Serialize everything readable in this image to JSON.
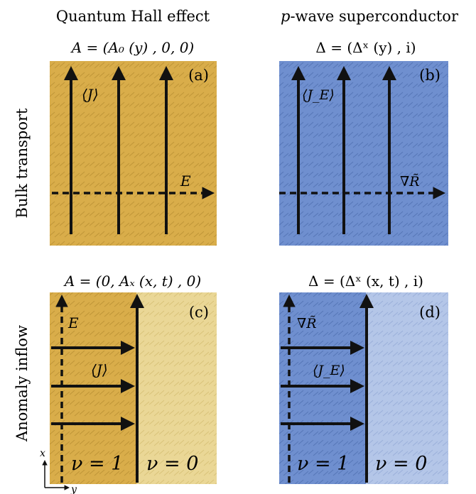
{
  "headers": {
    "left": "Quantum Hall effect",
    "right_italic": "p",
    "right_rest": "-wave superconductor"
  },
  "row_labels": {
    "top": "Bulk transport",
    "bottom": "Anomaly inflow"
  },
  "panels": {
    "a": {
      "tag": "(a)",
      "formula": "A = (A₀ (y) , 0, 0)",
      "label_current": "⟨J⟩",
      "label_field": "E"
    },
    "b": {
      "tag": "(b)",
      "formula": "Δ = (Δˣ (y) , i)",
      "label_current": "⟨J_E⟩",
      "label_field": "∇R̃"
    },
    "c": {
      "tag": "(c)",
      "formula": "A = (0, Aₓ (x, t) , 0)",
      "label_current": "⟨J⟩",
      "label_field": "E",
      "nu_left": "ν = 1",
      "nu_right": "ν = 0"
    },
    "d": {
      "tag": "(d)",
      "formula": "Δ = (Δˣ (x, t) , i)",
      "label_current": "⟨J_E⟩",
      "label_field": "∇R̃",
      "nu_left": "ν = 1",
      "nu_right": "ν = 0"
    }
  },
  "axes": {
    "x": "x",
    "y": "y"
  },
  "colors": {
    "gold_dark": "#d9ad4a",
    "gold_light": "#ead796",
    "blue_dark": "#6f8fcf",
    "blue_light": "#b4c6e8",
    "ink": "#111111"
  }
}
